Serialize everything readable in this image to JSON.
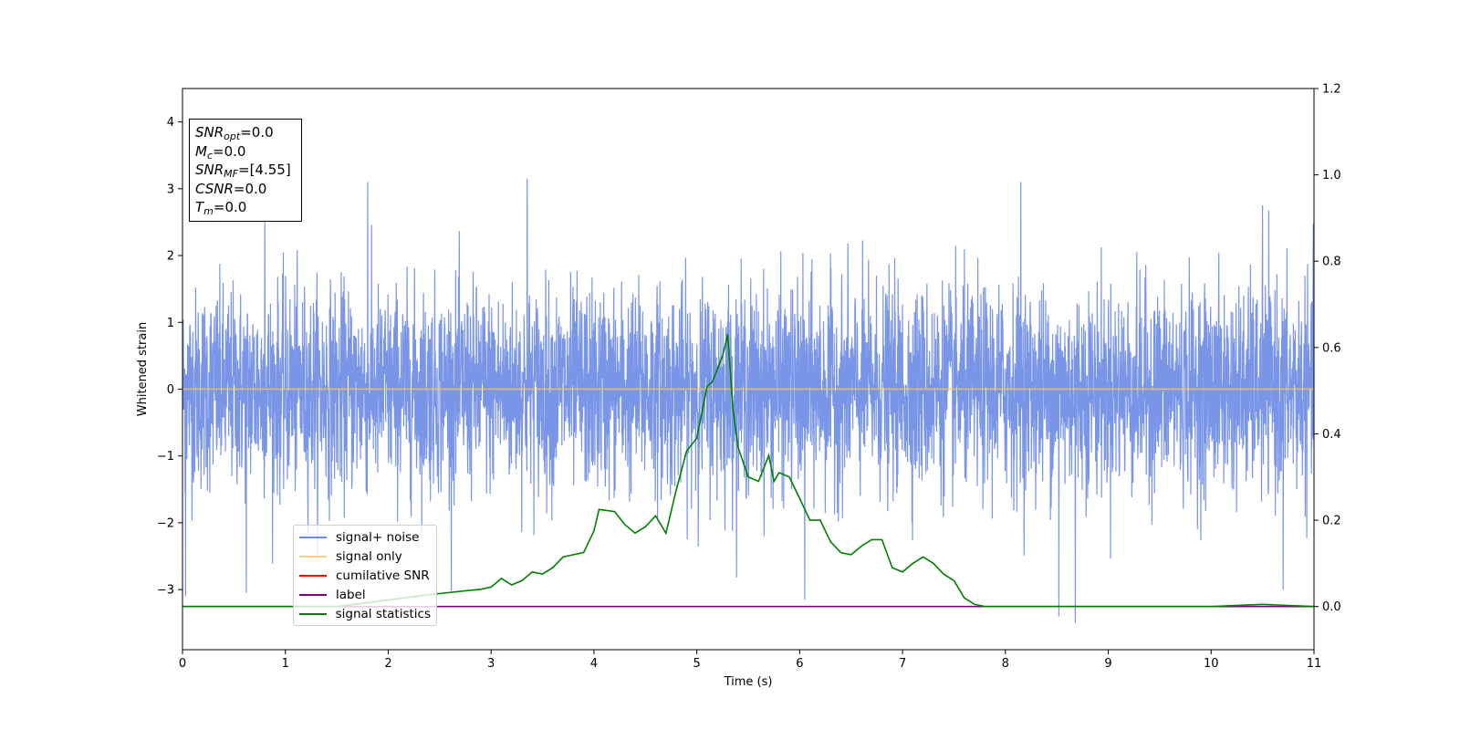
{
  "chart_data": {
    "type": "line",
    "xlabel": "Time (s)",
    "ylabel": "Whitened strain",
    "xlim": [
      0,
      11
    ],
    "ylim_left": [
      -3.9,
      4.5
    ],
    "ylim_right": [
      -0.1,
      1.2
    ],
    "x_ticks": [
      "0",
      "1",
      "2",
      "3",
      "4",
      "5",
      "6",
      "7",
      "8",
      "9",
      "10",
      "11"
    ],
    "y_left_ticks": [
      "−3",
      "−2",
      "−1",
      "0",
      "1",
      "2",
      "3",
      "4"
    ],
    "y_right_ticks": [
      "0.0",
      "0.2",
      "0.4",
      "0.6",
      "0.8",
      "1.0",
      "1.2"
    ],
    "legend_position": "lower-left",
    "series": [
      {
        "name": "signal+ noise",
        "axis": "left",
        "color": "#6a8ae6",
        "description_type": "noise",
        "approx_std": 0.75,
        "approx_range": [
          -3.55,
          3.15
        ],
        "notable_peaks": [
          [
            0.8,
            2.6
          ],
          [
            1.8,
            3.1
          ],
          [
            3.35,
            3.15
          ],
          [
            8.15,
            3.1
          ],
          [
            10.5,
            2.75
          ]
        ],
        "notable_troughs": [
          [
            0.03,
            -3.1
          ],
          [
            0.62,
            -3.05
          ],
          [
            6.05,
            -3.15
          ],
          [
            8.52,
            -3.4
          ],
          [
            8.68,
            -3.5
          ],
          [
            10.7,
            -3.0
          ]
        ]
      },
      {
        "name": "signal only",
        "axis": "left",
        "color": "#ffbf5f",
        "x": [
          0,
          11
        ],
        "y": [
          0,
          0
        ]
      },
      {
        "name": "cumilative SNR",
        "axis": "right",
        "color": "#ff0000",
        "x": [],
        "y": []
      },
      {
        "name": "label",
        "axis": "right",
        "color": "#800080",
        "x": [
          0,
          11
        ],
        "y": [
          0,
          0
        ]
      },
      {
        "name": "signal statistics",
        "axis": "right",
        "color": "#008000",
        "x": [
          0,
          0.5,
          1.0,
          1.5,
          2.0,
          2.3,
          2.5,
          2.7,
          2.9,
          3.0,
          3.1,
          3.2,
          3.3,
          3.4,
          3.5,
          3.6,
          3.7,
          3.8,
          3.9,
          4.0,
          4.05,
          4.2,
          4.3,
          4.4,
          4.5,
          4.6,
          4.7,
          4.8,
          4.9,
          5.0,
          5.05,
          5.1,
          5.15,
          5.2,
          5.25,
          5.3,
          5.35,
          5.4,
          5.5,
          5.6,
          5.7,
          5.75,
          5.8,
          5.9,
          6.0,
          6.1,
          6.2,
          6.3,
          6.4,
          6.5,
          6.6,
          6.7,
          6.8,
          6.9,
          7.0,
          7.1,
          7.2,
          7.3,
          7.4,
          7.5,
          7.6,
          7.7,
          7.8,
          8.0,
          8.5,
          9.0,
          9.5,
          10.0,
          10.5,
          11.0
        ],
        "y": [
          0.0,
          0.0,
          0.0,
          0.0,
          0.015,
          0.025,
          0.03,
          0.035,
          0.04,
          0.045,
          0.065,
          0.05,
          0.06,
          0.08,
          0.075,
          0.09,
          0.115,
          0.12,
          0.125,
          0.175,
          0.225,
          0.22,
          0.19,
          0.17,
          0.185,
          0.21,
          0.17,
          0.27,
          0.36,
          0.39,
          0.45,
          0.51,
          0.52,
          0.55,
          0.58,
          0.63,
          0.46,
          0.37,
          0.3,
          0.29,
          0.35,
          0.29,
          0.31,
          0.3,
          0.25,
          0.2,
          0.2,
          0.15,
          0.125,
          0.12,
          0.14,
          0.155,
          0.155,
          0.09,
          0.08,
          0.1,
          0.115,
          0.1,
          0.075,
          0.06,
          0.02,
          0.005,
          0.0,
          0.0,
          0.0,
          0.0,
          0.0,
          0.0,
          0.005,
          0.0
        ]
      }
    ]
  },
  "annotations": [
    {
      "sym": "SNR",
      "sub": "opt",
      "rest": "=0.0"
    },
    {
      "sym": "M",
      "sub": "c",
      "rest": "=0.0"
    },
    {
      "sym": "SNR",
      "sub": "MF",
      "rest": "=[4.55]"
    },
    {
      "sym": "CSNR",
      "sub": "",
      "rest": "=0.0"
    },
    {
      "sym": "T",
      "sub": "m",
      "rest": "=0.0"
    }
  ]
}
